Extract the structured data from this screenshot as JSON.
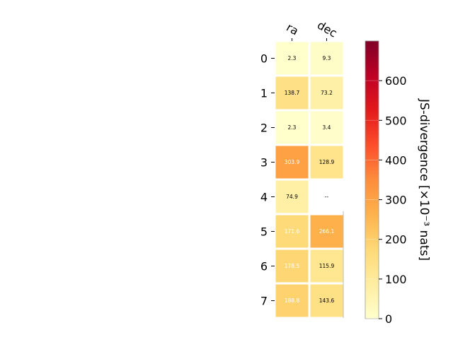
{
  "chart_data": {
    "type": "heatmap",
    "columns": [
      "ra",
      "dec"
    ],
    "rows": [
      "0",
      "1",
      "2",
      "3",
      "4",
      "5",
      "6",
      "7"
    ],
    "values": [
      [
        2.3,
        9.3
      ],
      [
        138.7,
        73.2
      ],
      [
        2.3,
        3.4
      ],
      [
        303.9,
        128.9
      ],
      [
        74.9,
        null
      ],
      [
        171.6,
        266.1
      ],
      [
        178.5,
        115.9
      ],
      [
        188.8,
        143.6
      ]
    ],
    "cell_labels": [
      [
        "2.3",
        "9.3"
      ],
      [
        "138.7",
        "73.2"
      ],
      [
        "2.3",
        "3.4"
      ],
      [
        "303.9",
        "128.9"
      ],
      [
        "74.9",
        "--"
      ],
      [
        "171.6",
        "266.1"
      ],
      [
        "178.5",
        "115.9"
      ],
      [
        "188.8",
        "143.6"
      ]
    ],
    "colorbar": {
      "label": "JS-divergence [×10⁻³ nats]",
      "min": 0,
      "max": 700,
      "ticks": [
        0,
        100,
        200,
        300,
        400,
        500,
        600
      ],
      "tick_labels": [
        "0",
        "100",
        "200",
        "300",
        "400",
        "500",
        "600"
      ],
      "colormap": "YlOrRd"
    },
    "colors": {
      "text_dark": "#000000",
      "text_light": "#ffffff",
      "cell_border": "#ffffff",
      "missing_cell": "#ffffff"
    }
  }
}
